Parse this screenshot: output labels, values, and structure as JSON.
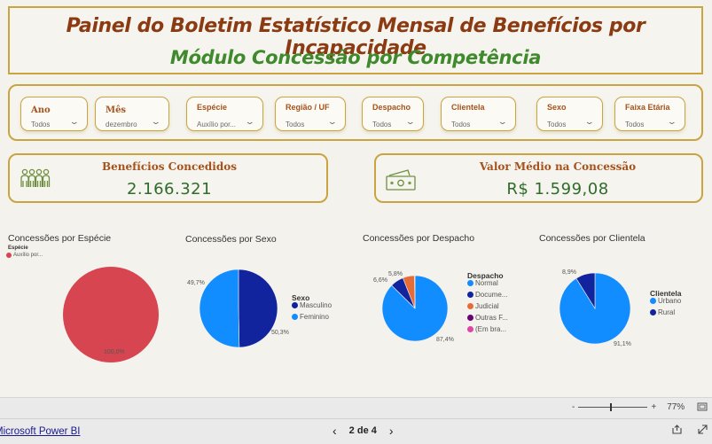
{
  "header": {
    "title": "Painel do Boletim Estatístico Mensal de Benefícios por Incapacidade",
    "subtitle": "Módulo Concessão por Competência"
  },
  "filters": [
    {
      "label": "Ano",
      "value": "Todos"
    },
    {
      "label": "Mês",
      "value": "dezembro"
    },
    {
      "label": "Espécie",
      "value": "Auxílio por..."
    },
    {
      "label": "Região / UF",
      "value": "Todos"
    },
    {
      "label": "Despacho",
      "value": "Todos"
    },
    {
      "label": "Clientela",
      "value": "Todos"
    },
    {
      "label": "Sexo",
      "value": "Todos"
    },
    {
      "label": "Faixa Etária",
      "value": "Todos"
    }
  ],
  "kpis": {
    "beneficios": {
      "title": "Benefícios Concedidos",
      "value": "2.166.321",
      "icon": "people-icon"
    },
    "valor_medio": {
      "title": "Valor Médio na Concessão",
      "value": "R$ 1.599,08",
      "icon": "banknote-icon"
    }
  },
  "charts": {
    "especie": {
      "title": "Concessões por Espécie",
      "legend_title": "Espécie",
      "legend": [
        "Auxílio por..."
      ],
      "labels": [
        "100,0%"
      ]
    },
    "sexo": {
      "title": "Concessões por Sexo",
      "legend_title": "Sexo",
      "legend": [
        "Masculino",
        "Feminino"
      ],
      "labels": [
        "49,7%",
        "50,3%"
      ]
    },
    "despacho": {
      "title": "Concessões por Despacho",
      "legend_title": "Despacho",
      "legend": [
        "Normal",
        "Docume...",
        "Judicial",
        "Outras F...",
        "(Em bra..."
      ],
      "labels": [
        "5,8%",
        "6,6%",
        "87,4%"
      ]
    },
    "clientela": {
      "title": "Concessões por Clientela",
      "legend_title": "Clientela",
      "legend": [
        "Urbano",
        "Rural"
      ],
      "labels": [
        "8,9%",
        "91,1%"
      ]
    }
  },
  "chart_data": [
    {
      "type": "pie",
      "title": "Concessões por Espécie",
      "categories": [
        "Auxílio por..."
      ],
      "values": [
        100.0
      ],
      "colors": [
        "#d64550"
      ]
    },
    {
      "type": "pie",
      "title": "Concessões por Sexo",
      "categories": [
        "Masculino",
        "Feminino"
      ],
      "values": [
        49.7,
        50.3
      ],
      "colors": [
        "#12239e",
        "#118dff"
      ]
    },
    {
      "type": "pie",
      "title": "Concessões por Despacho",
      "categories": [
        "Normal",
        "Docume...",
        "Judicial",
        "Outras F...",
        "(Em bra..."
      ],
      "values": [
        87.4,
        6.6,
        5.8,
        0.1,
        0.1
      ],
      "colors": [
        "#118dff",
        "#12239e",
        "#e66c37",
        "#6b007b",
        "#e044a7"
      ]
    },
    {
      "type": "pie",
      "title": "Concessões por Clientela",
      "categories": [
        "Urbano",
        "Rural"
      ],
      "values": [
        91.1,
        8.9
      ],
      "colors": [
        "#118dff",
        "#12239e"
      ]
    }
  ],
  "footer": {
    "link": "Microsoft Power BI",
    "page": "2 de 4",
    "prev": "‹",
    "next": "›",
    "zoom": "77%",
    "zoom_minus": "-",
    "zoom_plus": "+"
  }
}
